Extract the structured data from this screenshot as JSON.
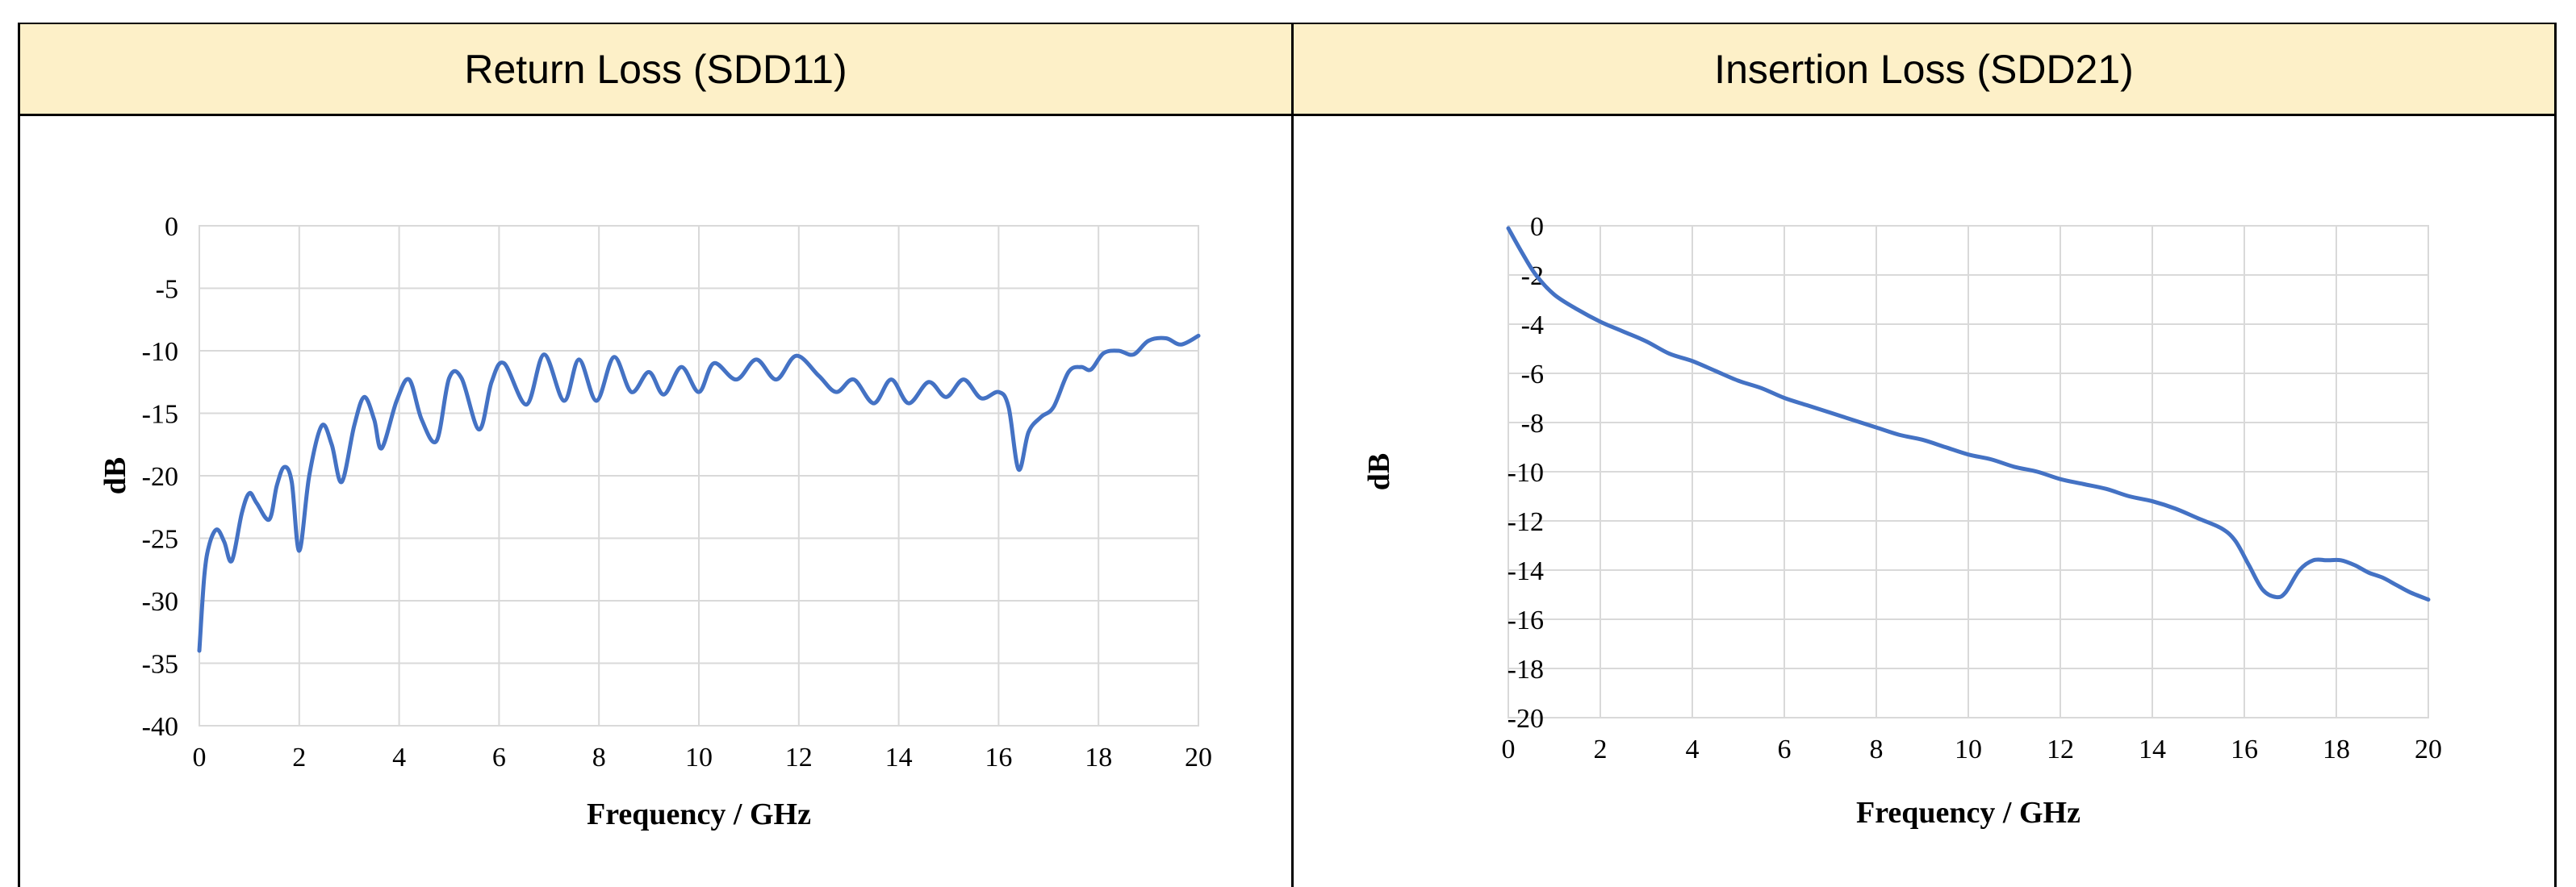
{
  "headers": {
    "left": "Return Loss (SDD11)",
    "right": "Insertion Loss (SDD21)"
  },
  "chart_data": [
    {
      "type": "line",
      "title": "Return Loss (SDD11)",
      "xlabel": "Frequency / GHz",
      "ylabel": "dB",
      "xlim": [
        0,
        20
      ],
      "ylim": [
        -40,
        0
      ],
      "xticks": [
        0,
        2,
        4,
        6,
        8,
        10,
        12,
        14,
        16,
        18,
        20
      ],
      "yticks": [
        0,
        -5,
        -10,
        -15,
        -20,
        -25,
        -30,
        -35,
        -40
      ],
      "grid": true,
      "color": "#4472c4",
      "series": [
        {
          "x": [
            0,
            0.1,
            0.2,
            0.35,
            0.5,
            0.65,
            0.85,
            1.0,
            1.15,
            1.4,
            1.55,
            1.7,
            1.85,
            2.0,
            2.2,
            2.45,
            2.65,
            2.85,
            3.1,
            3.3,
            3.5,
            3.65,
            3.95,
            4.2,
            4.45,
            4.75,
            5.0,
            5.25,
            5.6,
            5.85,
            6.1,
            6.55,
            6.9,
            7.3,
            7.6,
            7.95,
            8.3,
            8.65,
            9.0,
            9.3,
            9.65,
            10.0,
            10.3,
            10.75,
            11.15,
            11.55,
            11.95,
            12.4,
            12.75,
            13.1,
            13.5,
            13.85,
            14.2,
            14.6,
            14.95,
            15.3,
            15.65,
            16.0,
            16.2,
            16.4,
            16.6,
            16.85,
            17.1,
            17.4,
            17.65,
            17.85,
            18.1,
            18.4,
            18.7,
            19.0,
            19.35,
            19.65,
            20.0
          ],
          "y": [
            -34,
            -28,
            -25.5,
            -24.3,
            -25.3,
            -26.8,
            -23,
            -21.4,
            -22.2,
            -23.5,
            -20.8,
            -19.3,
            -20.5,
            -26,
            -20,
            -16,
            -17.5,
            -20.5,
            -16,
            -13.7,
            -15.5,
            -17.8,
            -14,
            -12.3,
            -15.5,
            -17.2,
            -12.2,
            -12.2,
            -16.3,
            -12.5,
            -11,
            -14.3,
            -10.3,
            -14,
            -10.7,
            -14,
            -10.5,
            -13.3,
            -11.7,
            -13.5,
            -11.3,
            -13.3,
            -11,
            -12.3,
            -10.7,
            -12.3,
            -10.4,
            -12,
            -13.3,
            -12.3,
            -14.2,
            -12.3,
            -14.2,
            -12.5,
            -13.7,
            -12.3,
            -13.8,
            -13.3,
            -14.5,
            -19.5,
            -16.5,
            -15.3,
            -14.5,
            -11.7,
            -11.3,
            -11.5,
            -10.2,
            -10,
            -10.3,
            -9.2,
            -9,
            -9.5,
            -8.8
          ]
        }
      ]
    },
    {
      "type": "line",
      "title": "Insertion Loss (SDD21)",
      "xlabel": "Frequency / GHz",
      "ylabel": "dB",
      "xlim": [
        0,
        20
      ],
      "ylim": [
        -20,
        0
      ],
      "xticks": [
        0,
        2,
        4,
        6,
        8,
        10,
        12,
        14,
        16,
        18,
        20
      ],
      "yticks": [
        0,
        -2,
        -4,
        -6,
        -8,
        -10,
        -12,
        -14,
        -16,
        -18,
        -20
      ],
      "grid": true,
      "color": "#4472c4",
      "series": [
        {
          "x": [
            0,
            0.3,
            0.6,
            1.0,
            1.5,
            2.0,
            2.5,
            3.0,
            3.5,
            4.0,
            4.5,
            5.0,
            5.5,
            6.0,
            6.5,
            7.0,
            7.5,
            8.0,
            8.5,
            9.0,
            9.5,
            10.0,
            10.5,
            11.0,
            11.5,
            12.0,
            12.5,
            13.0,
            13.5,
            14.0,
            14.5,
            15.0,
            15.5,
            15.8,
            16.1,
            16.4,
            16.7,
            16.9,
            17.2,
            17.5,
            17.8,
            18.1,
            18.4,
            18.7,
            19.0,
            19.3,
            19.6,
            20.0
          ],
          "y": [
            -0.1,
            -1.1,
            -2.0,
            -2.8,
            -3.4,
            -3.9,
            -4.3,
            -4.7,
            -5.2,
            -5.5,
            -5.9,
            -6.3,
            -6.6,
            -7.0,
            -7.3,
            -7.6,
            -7.9,
            -8.2,
            -8.5,
            -8.7,
            -9.0,
            -9.3,
            -9.5,
            -9.8,
            -10.0,
            -10.3,
            -10.5,
            -10.7,
            -11.0,
            -11.2,
            -11.5,
            -11.9,
            -12.3,
            -12.8,
            -13.8,
            -14.8,
            -15.1,
            -14.9,
            -14.0,
            -13.6,
            -13.6,
            -13.6,
            -13.8,
            -14.1,
            -14.3,
            -14.6,
            -14.9,
            -15.2
          ]
        }
      ]
    }
  ]
}
